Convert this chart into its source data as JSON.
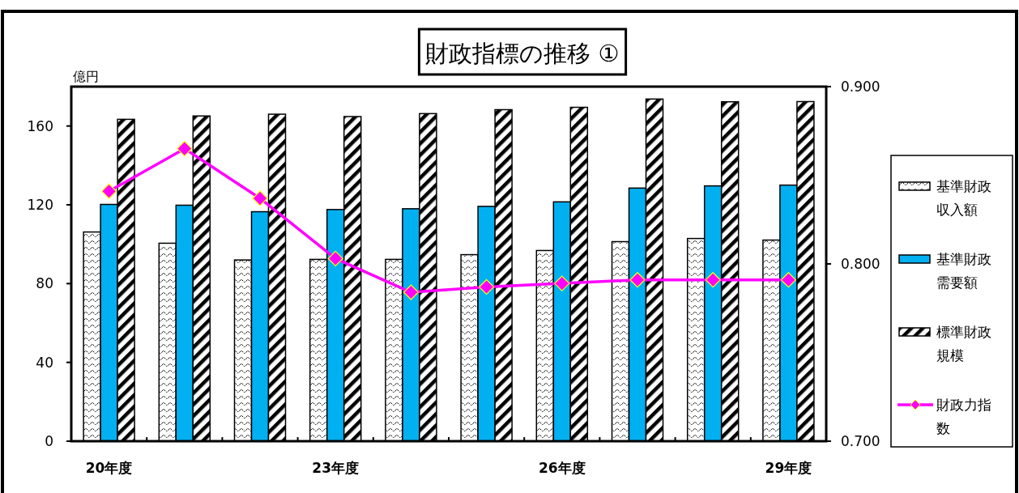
{
  "chart_data": {
    "type": "bar",
    "title": "財政指標の推移 ①",
    "ylabel": "億円",
    "categories": [
      "20年度",
      null,
      null,
      "23年度",
      null,
      null,
      "26年度",
      null,
      null,
      "29年度"
    ],
    "series": [
      {
        "name": "基準財政収入額",
        "color": "#000000",
        "values": [
          106.2,
          100.5,
          92.0,
          92.3,
          92.3,
          94.7,
          96.8,
          101.3,
          102.9,
          102.1
        ]
      },
      {
        "name": "基準財政需要額",
        "color": "#00b0f0",
        "values": [
          120.2,
          119.8,
          116.5,
          117.6,
          118.0,
          119.2,
          121.5,
          128.5,
          129.6,
          130.0
        ]
      },
      {
        "name": "標準財政規模",
        "color": "#000000",
        "values": [
          163.4,
          165.1,
          166.0,
          164.8,
          166.3,
          168.3,
          169.5,
          173.7,
          172.3,
          172.4
        ]
      },
      {
        "name": "財政力指数",
        "type": "line",
        "axis": "y2",
        "color": "#ff00ff",
        "marker": "diamond",
        "values": [
          0.841,
          0.865,
          0.837,
          0.803,
          0.784,
          0.787,
          0.789,
          0.791,
          0.791,
          0.791
        ]
      }
    ],
    "ylim": [
      0,
      180
    ],
    "yticks": [
      0,
      40,
      80,
      120,
      160
    ],
    "y2lim": [
      0.7,
      0.9
    ],
    "y2ticks": [
      {
        "value": 0.7,
        "label": "0.700"
      },
      {
        "value": 0.8,
        "label": "0.800"
      },
      {
        "value": 0.9,
        "label": "0.900"
      }
    ],
    "legend": "right"
  }
}
